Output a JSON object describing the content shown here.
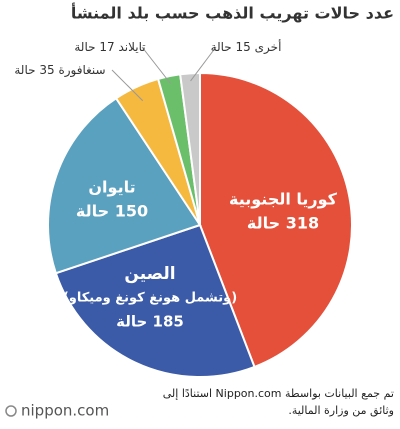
{
  "chart_data": {
    "type": "pie",
    "title": "عدد حالات تهريب الذهب حسب بلد المنشأ",
    "categories": [
      "كوريا الجنوبية",
      "الصين",
      "تايوان",
      "سنغافورة",
      "تايلاند",
      "أخرى"
    ],
    "sublabels": [
      null,
      "(وتشمل هونغ كونغ وميكاو)",
      null,
      null,
      null,
      null
    ],
    "values": [
      318,
      185,
      150,
      35,
      17,
      15
    ],
    "value_labels": [
      "318 حالة",
      "185 حالة",
      "150 حالة",
      "35 حالة",
      "17 حالة",
      "15 حالة"
    ],
    "colors": [
      "#e4503a",
      "#3b5ba8",
      "#5aa0bf",
      "#f5b940",
      "#6cbf6a",
      "#c9c9c9"
    ],
    "source": [
      "تم جمع البيانات بواسطة Nippon.com استنادًا إلى",
      "وثائق من وزارة المالية."
    ],
    "logo": "nippon.com"
  }
}
